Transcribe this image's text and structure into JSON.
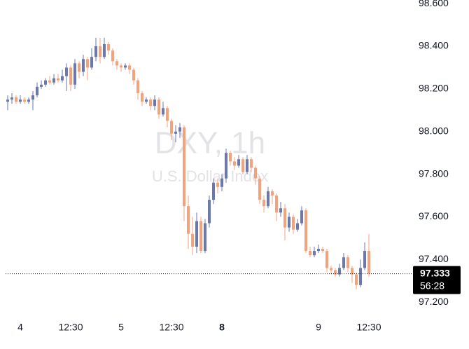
{
  "chart_data": {
    "type": "candlestick",
    "title": "DXY, 1h",
    "subtitle": "U.S. Dollar Index",
    "countdown": "56:28",
    "up_color": "#6a77b0",
    "down_color": "#f5a27c",
    "ylim": [
      97.128,
      98.617
    ],
    "yticks": [
      {
        "value": 97.2,
        "label": "97.200"
      },
      {
        "value": 97.4,
        "label": "97.400"
      },
      {
        "value": 97.6,
        "label": "97.600"
      },
      {
        "value": 97.8,
        "label": "97.800"
      },
      {
        "value": 98.0,
        "label": "98.000"
      },
      {
        "value": 98.2,
        "label": "98.200"
      },
      {
        "value": 98.4,
        "label": "98.400"
      },
      {
        "value": 98.6,
        "label": "98.600"
      }
    ],
    "categories": [
      null,
      null,
      null,
      "4",
      null,
      null,
      null,
      null,
      null,
      null,
      null,
      null,
      null,
      null,
      null,
      "12:30",
      null,
      null,
      null,
      null,
      null,
      null,
      null,
      null,
      null,
      null,
      null,
      "5",
      null,
      null,
      null,
      null,
      null,
      null,
      null,
      null,
      null,
      null,
      null,
      "12:30",
      null,
      null,
      null,
      null,
      null,
      null,
      null,
      null,
      null,
      null,
      null,
      "8",
      null,
      null,
      null,
      null,
      null,
      null,
      null,
      null,
      null,
      null,
      null,
      null,
      null,
      null,
      null,
      null,
      null,
      null,
      null,
      null,
      null,
      null,
      "9",
      null,
      null,
      null,
      null,
      null,
      null,
      null,
      null,
      null,
      null,
      null,
      "12:30"
    ],
    "open": [
      98.14,
      98.15,
      98.16,
      98.14,
      98.15,
      98.14,
      98.15,
      98.17,
      98.21,
      98.22,
      98.24,
      98.23,
      98.25,
      98.24,
      98.26,
      98.3,
      98.22,
      98.32,
      98.28,
      98.34,
      98.3,
      98.35,
      98.4,
      98.35,
      98.41,
      98.38,
      98.33,
      98.31,
      98.3,
      98.31,
      98.29,
      98.24,
      98.18,
      98.14,
      98.15,
      98.12,
      98.15,
      98.08,
      98.11,
      98.05,
      97.99,
      98.0,
      98.02,
      97.65,
      97.52,
      97.46,
      97.58,
      97.44,
      97.57,
      97.68,
      97.76,
      97.74,
      97.78,
      97.9,
      97.86,
      97.84,
      97.87,
      97.81,
      97.87,
      97.83,
      97.78,
      97.68,
      97.65,
      97.72,
      97.7,
      97.62,
      97.64,
      97.55,
      97.6,
      97.54,
      97.57,
      97.63,
      97.44,
      97.42,
      97.44,
      97.45,
      97.44,
      97.36,
      97.35,
      97.33,
      97.36,
      97.41,
      97.36,
      97.33,
      97.28,
      97.36,
      97.44
    ],
    "high": [
      98.17,
      98.18,
      98.17,
      98.17,
      98.16,
      98.16,
      98.19,
      98.23,
      98.24,
      98.25,
      98.26,
      98.27,
      98.27,
      98.29,
      98.32,
      98.31,
      98.34,
      98.33,
      98.36,
      98.35,
      98.39,
      98.44,
      98.44,
      98.44,
      98.42,
      98.39,
      98.34,
      98.32,
      98.32,
      98.32,
      98.3,
      98.25,
      98.19,
      98.16,
      98.16,
      98.17,
      98.16,
      98.14,
      98.12,
      98.06,
      98.03,
      98.04,
      98.03,
      97.7,
      97.6,
      97.62,
      97.6,
      97.59,
      97.7,
      97.78,
      97.78,
      97.8,
      97.92,
      97.91,
      97.88,
      97.89,
      97.88,
      97.89,
      97.88,
      97.84,
      97.79,
      97.7,
      97.74,
      97.73,
      97.71,
      97.67,
      97.66,
      97.62,
      97.61,
      97.59,
      97.65,
      97.64,
      97.46,
      97.46,
      97.47,
      97.46,
      97.45,
      97.37,
      97.36,
      97.38,
      97.43,
      97.42,
      97.37,
      97.34,
      97.4,
      97.48,
      97.52
    ],
    "low": [
      98.1,
      98.13,
      98.13,
      98.13,
      98.13,
      98.13,
      98.1,
      98.16,
      98.2,
      98.21,
      98.22,
      98.22,
      98.23,
      98.23,
      98.19,
      98.19,
      98.2,
      98.25,
      98.26,
      98.24,
      98.29,
      98.33,
      98.32,
      98.34,
      98.36,
      98.31,
      98.29,
      98.28,
      98.29,
      98.27,
      98.22,
      98.15,
      98.12,
      98.13,
      98.1,
      98.1,
      98.06,
      98.07,
      98.02,
      97.96,
      97.95,
      97.97,
      97.58,
      97.45,
      97.42,
      97.43,
      97.43,
      97.43,
      97.55,
      97.66,
      97.71,
      97.72,
      97.76,
      97.84,
      97.82,
      97.83,
      97.8,
      97.8,
      97.81,
      97.75,
      97.66,
      97.62,
      97.64,
      97.66,
      97.58,
      97.6,
      97.49,
      97.53,
      97.52,
      97.53,
      97.56,
      97.43,
      97.41,
      97.41,
      97.43,
      97.43,
      97.34,
      97.33,
      97.32,
      97.32,
      97.35,
      97.34,
      97.29,
      97.26,
      97.27,
      97.35,
      97.32
    ],
    "close": [
      98.15,
      98.16,
      98.14,
      98.15,
      98.14,
      98.15,
      98.17,
      98.21,
      98.22,
      98.24,
      98.23,
      98.25,
      98.24,
      98.26,
      98.3,
      98.22,
      98.32,
      98.28,
      98.34,
      98.3,
      98.35,
      98.4,
      98.35,
      98.41,
      98.38,
      98.33,
      98.31,
      98.3,
      98.31,
      98.29,
      98.24,
      98.18,
      98.14,
      98.15,
      98.12,
      98.15,
      98.08,
      98.11,
      98.05,
      97.99,
      98.0,
      98.02,
      97.65,
      97.52,
      97.46,
      97.58,
      97.44,
      97.57,
      97.68,
      97.76,
      97.74,
      97.78,
      97.9,
      97.86,
      97.84,
      97.87,
      97.81,
      97.87,
      97.83,
      97.78,
      97.68,
      97.65,
      97.72,
      97.7,
      97.62,
      97.64,
      97.55,
      97.6,
      97.54,
      97.57,
      97.63,
      97.44,
      97.42,
      97.44,
      97.45,
      97.44,
      97.36,
      97.35,
      97.33,
      97.36,
      97.41,
      97.36,
      97.33,
      97.28,
      97.36,
      97.44,
      97.333
    ]
  }
}
